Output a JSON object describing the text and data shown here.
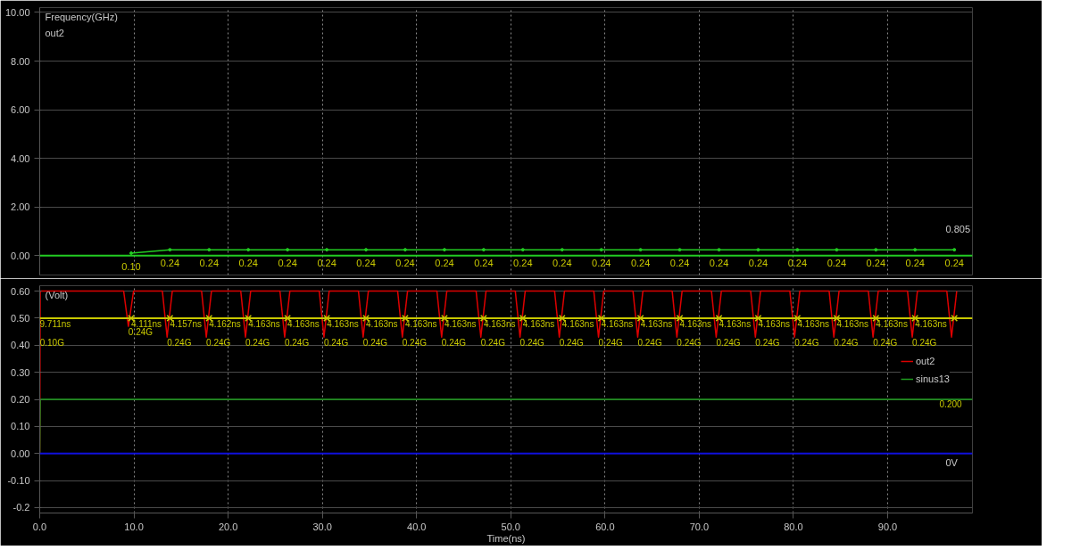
{
  "chart_data": [
    {
      "type": "line",
      "ylabel": "Frequency(GHz)",
      "xlim": [
        0,
        99
      ],
      "ylim": [
        -0.8,
        10.2
      ],
      "xticks": [
        0,
        10,
        20,
        30,
        40,
        50,
        60,
        70,
        80,
        90
      ],
      "yticks": [
        {
          "value": 0,
          "label": "0.00"
        },
        {
          "value": 2,
          "label": "2.00"
        },
        {
          "value": 4,
          "label": "4.00"
        },
        {
          "value": 6,
          "label": "6.00"
        },
        {
          "value": 8,
          "label": "8.00"
        },
        {
          "value": 10,
          "label": "10.00"
        }
      ],
      "tick_labels": "y",
      "grid": true,
      "series": [
        {
          "color": "#22cc22",
          "marker": "circle",
          "x": [
            9.71,
            13.82,
            17.98,
            22.14,
            26.3,
            30.47,
            34.63,
            38.79,
            42.96,
            47.12,
            51.28,
            55.45,
            59.61,
            63.77,
            67.93,
            72.1,
            76.26,
            80.42,
            84.59,
            88.75,
            92.91,
            97.08
          ],
          "values": [
            0.1,
            0.24,
            0.24,
            0.24,
            0.24,
            0.24,
            0.24,
            0.24,
            0.24,
            0.24,
            0.24,
            0.24,
            0.24,
            0.24,
            0.24,
            0.24,
            0.24,
            0.24,
            0.24,
            0.24,
            0.24,
            0.24
          ],
          "value_labels": [
            "0.10",
            "0.24",
            "0.24",
            "0.24",
            "0.24",
            "0.24",
            "0.24",
            "0.24",
            "0.24",
            "0.24",
            "0.24",
            "0.24",
            "0.24",
            "0.24",
            "0.24",
            "0.24",
            "0.24",
            "0.24",
            "0.24",
            "0.24",
            "0.24",
            "0.24"
          ]
        }
      ],
      "ref_lines": [
        {
          "axis": "y",
          "value": 0,
          "color": "#22cc22"
        }
      ],
      "annotations": [
        "out2",
        "0.805"
      ]
    },
    {
      "type": "line",
      "ylabel": "(Volt)",
      "xlabel": "Time(ns)",
      "xlim": [
        0,
        99
      ],
      "ylim": [
        -0.22,
        0.62
      ],
      "xticks": [
        {
          "value": 0,
          "label": "0.0"
        },
        {
          "value": 10,
          "label": "10.0"
        },
        {
          "value": 20,
          "label": "20.0"
        },
        {
          "value": 30,
          "label": "30.0"
        },
        {
          "value": 40,
          "label": "40.0"
        },
        {
          "value": 50,
          "label": "50.0"
        },
        {
          "value": 60,
          "label": "60.0"
        },
        {
          "value": 70,
          "label": "70.0"
        },
        {
          "value": 80,
          "label": "80.0"
        },
        {
          "value": 90,
          "label": "90.0"
        }
      ],
      "yticks": [
        {
          "value": 0.6,
          "label": "0.60"
        },
        {
          "value": 0.5,
          "label": "0.50"
        },
        {
          "value": 0.4,
          "label": "0.40"
        },
        {
          "value": 0.3,
          "label": "0.30"
        },
        {
          "value": 0.2,
          "label": "0.20"
        },
        {
          "value": 0.1,
          "label": "0.10"
        },
        {
          "value": 0,
          "label": "0.00"
        },
        {
          "value": -0.1,
          "label": "-0.10"
        },
        {
          "value": -0.2,
          "label": "-0.2"
        }
      ],
      "grid": true,
      "legend": "right",
      "series": [
        {
          "name": "out2",
          "color": "#dd0000",
          "x": [
            0,
            0.05,
            8.91,
            9.41,
            9.96,
            13.02,
            13.52,
            14.07,
            17.18,
            17.68,
            18.23,
            21.34,
            21.84,
            22.39,
            25.5,
            26.0,
            26.55,
            29.67,
            30.17,
            30.72,
            33.83,
            34.33,
            34.88,
            37.99,
            38.49,
            39.04,
            42.16,
            42.66,
            43.21,
            46.32,
            46.82,
            47.37,
            50.48,
            50.98,
            51.53,
            54.65,
            55.15,
            55.7,
            58.81,
            59.31,
            59.86,
            62.97,
            63.47,
            64.02,
            67.13,
            67.63,
            68.18,
            71.3,
            71.8,
            72.35,
            75.46,
            75.96,
            76.51,
            79.62,
            80.12,
            80.67,
            83.79,
            84.29,
            84.84,
            87.95,
            88.45,
            89.0,
            92.11,
            92.61,
            93.16,
            96.28,
            96.78,
            97.33
          ],
          "values": [
            0,
            0.6,
            0.6,
            0.47,
            0.6,
            0.6,
            0.43,
            0.6,
            0.6,
            0.43,
            0.6,
            0.6,
            0.43,
            0.6,
            0.6,
            0.43,
            0.6,
            0.6,
            0.43,
            0.6,
            0.6,
            0.43,
            0.6,
            0.6,
            0.43,
            0.6,
            0.6,
            0.43,
            0.6,
            0.6,
            0.43,
            0.6,
            0.6,
            0.43,
            0.6,
            0.6,
            0.43,
            0.6,
            0.6,
            0.43,
            0.6,
            0.6,
            0.43,
            0.6,
            0.6,
            0.43,
            0.6,
            0.6,
            0.43,
            0.6,
            0.6,
            0.43,
            0.6,
            0.6,
            0.43,
            0.6,
            0.6,
            0.43,
            0.6,
            0.6,
            0.43,
            0.6,
            0.6,
            0.43,
            0.6,
            0.6,
            0.43,
            0.6
          ]
        },
        {
          "name": "sinus13",
          "color": "#1e9c1e",
          "x": [
            0,
            0.05,
            99
          ],
          "values": [
            0,
            0.2,
            0.2
          ]
        },
        {
          "type": "scatter",
          "marker": "cross",
          "color": "#c8c800",
          "x": [
            9.71,
            13.82,
            17.98,
            22.14,
            26.3,
            30.47,
            34.63,
            38.79,
            42.96,
            47.12,
            51.28,
            55.45,
            59.61,
            63.77,
            67.93,
            72.1,
            76.26,
            80.42,
            84.59,
            88.75,
            92.91,
            97.08
          ],
          "values": [
            0.5,
            0.5,
            0.5,
            0.5,
            0.5,
            0.5,
            0.5,
            0.5,
            0.5,
            0.5,
            0.5,
            0.5,
            0.5,
            0.5,
            0.5,
            0.5,
            0.5,
            0.5,
            0.5,
            0.5,
            0.5,
            0.5
          ]
        }
      ],
      "ref_lines": [
        {
          "axis": "y",
          "value": 0.5,
          "color": "#c8c800"
        },
        {
          "axis": "y",
          "value": 0,
          "label": "0V",
          "color": "#1010dd"
        }
      ],
      "annotations": [
        {
          "text": "9.711ns",
          "x": 0,
          "y": 0.5
        },
        {
          "text": "4.111ns",
          "x": 9.71,
          "y": 0.5
        },
        {
          "text": "4.157ns",
          "x": 13.82,
          "y": 0.5
        },
        {
          "text": "4.162ns",
          "x": 17.98,
          "y": 0.5
        },
        {
          "text": "4.163ns",
          "x": 22.14,
          "y": 0.5
        },
        {
          "text": "4.163ns",
          "x": 26.3,
          "y": 0.5
        },
        {
          "text": "4.163ns",
          "x": 30.47,
          "y": 0.5
        },
        {
          "text": "4.163ns",
          "x": 34.63,
          "y": 0.5
        },
        {
          "text": "4.163ns",
          "x": 38.79,
          "y": 0.5
        },
        {
          "text": "4.163ns",
          "x": 42.96,
          "y": 0.5
        },
        {
          "text": "4.163ns",
          "x": 47.12,
          "y": 0.5
        },
        {
          "text": "4.163ns",
          "x": 51.28,
          "y": 0.5
        },
        {
          "text": "4.163ns",
          "x": 55.45,
          "y": 0.5
        },
        {
          "text": "4.163ns",
          "x": 59.61,
          "y": 0.5
        },
        {
          "text": "4.163ns",
          "x": 63.77,
          "y": 0.5
        },
        {
          "text": "4.163ns",
          "x": 67.93,
          "y": 0.5
        },
        {
          "text": "4.163ns",
          "x": 72.1,
          "y": 0.5
        },
        {
          "text": "4.163ns",
          "x": 76.26,
          "y": 0.5
        },
        {
          "text": "4.163ns",
          "x": 80.42,
          "y": 0.5
        },
        {
          "text": "4.163ns",
          "x": 84.59,
          "y": 0.5
        },
        {
          "text": "4.163ns",
          "x": 88.75,
          "y": 0.5
        },
        {
          "text": "4.163ns",
          "x": 92.91,
          "y": 0.5
        },
        {
          "text": "0.10G",
          "x": 0.02,
          "y": 0.43
        },
        {
          "text": "0.24G",
          "x": 9.41,
          "y": 0.47
        },
        {
          "text": "0.24G",
          "x": 13.52,
          "y": 0.43
        },
        {
          "text": "0.24G",
          "x": 17.68,
          "y": 0.43
        },
        {
          "text": "0.24G",
          "x": 21.84,
          "y": 0.43
        },
        {
          "text": "0.24G",
          "x": 26.0,
          "y": 0.43
        },
        {
          "text": "0.24G",
          "x": 30.17,
          "y": 0.43
        },
        {
          "text": "0.24G",
          "x": 34.33,
          "y": 0.43
        },
        {
          "text": "0.24G",
          "x": 38.49,
          "y": 0.43
        },
        {
          "text": "0.24G",
          "x": 42.66,
          "y": 0.43
        },
        {
          "text": "0.24G",
          "x": 46.82,
          "y": 0.43
        },
        {
          "text": "0.24G",
          "x": 50.98,
          "y": 0.43
        },
        {
          "text": "0.24G",
          "x": 55.15,
          "y": 0.43
        },
        {
          "text": "0.24G",
          "x": 59.31,
          "y": 0.43
        },
        {
          "text": "0.24G",
          "x": 63.47,
          "y": 0.43
        },
        {
          "text": "0.24G",
          "x": 67.63,
          "y": 0.43
        },
        {
          "text": "0.24G",
          "x": 71.8,
          "y": 0.43
        },
        {
          "text": "0.24G",
          "x": 75.96,
          "y": 0.43
        },
        {
          "text": "0.24G",
          "x": 80.12,
          "y": 0.43
        },
        {
          "text": "0.24G",
          "x": 84.29,
          "y": 0.43
        },
        {
          "text": "0.24G",
          "x": 88.45,
          "y": 0.43
        },
        {
          "text": "0.24G",
          "x": 92.61,
          "y": 0.43
        },
        {
          "text": "0.200",
          "x": 95.5,
          "y": 0.2
        }
      ]
    }
  ]
}
